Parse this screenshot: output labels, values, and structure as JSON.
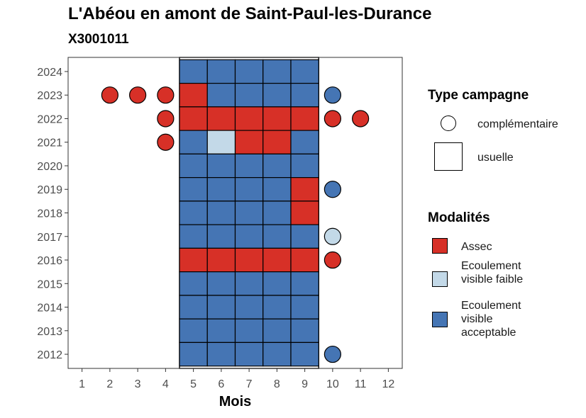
{
  "title": "L'Abéou en amont de Saint-Paul-les-Durance",
  "subtitle": "X3001011",
  "chart_data": {
    "type": "heatmap",
    "xlabel": "Mois",
    "ylabel": "",
    "x_ticks": [
      1,
      2,
      3,
      4,
      5,
      6,
      7,
      8,
      9,
      10,
      11,
      12
    ],
    "y_ticks": [
      2012,
      2013,
      2014,
      2015,
      2016,
      2017,
      2018,
      2019,
      2020,
      2021,
      2022,
      2023,
      2024
    ],
    "xlim": [
      0.5,
      12.5
    ],
    "ylim": [
      2011.4,
      2024.6
    ],
    "grid": false,
    "legend_position": "right",
    "colors": {
      "Assec": "#d73027",
      "Ecoulement visible faible": "#c3d9e8",
      "Ecoulement visible acceptable": "#4575b4"
    },
    "usual_campaign_band": [
      5,
      9
    ],
    "points": [
      {
        "year": 2024,
        "month": 5,
        "type": "usuelle",
        "modalite": "Ecoulement visible acceptable"
      },
      {
        "year": 2024,
        "month": 6,
        "type": "usuelle",
        "modalite": "Ecoulement visible acceptable"
      },
      {
        "year": 2024,
        "month": 7,
        "type": "usuelle",
        "modalite": "Ecoulement visible acceptable"
      },
      {
        "year": 2024,
        "month": 8,
        "type": "usuelle",
        "modalite": "Ecoulement visible acceptable"
      },
      {
        "year": 2024,
        "month": 9,
        "type": "usuelle",
        "modalite": "Ecoulement visible acceptable"
      },
      {
        "year": 2023,
        "month": 2,
        "type": "complémentaire",
        "modalite": "Assec"
      },
      {
        "year": 2023,
        "month": 3,
        "type": "complémentaire",
        "modalite": "Assec"
      },
      {
        "year": 2023,
        "month": 4,
        "type": "complémentaire",
        "modalite": "Assec"
      },
      {
        "year": 2023,
        "month": 5,
        "type": "usuelle",
        "modalite": "Assec"
      },
      {
        "year": 2023,
        "month": 6,
        "type": "usuelle",
        "modalite": "Ecoulement visible acceptable"
      },
      {
        "year": 2023,
        "month": 7,
        "type": "usuelle",
        "modalite": "Ecoulement visible acceptable"
      },
      {
        "year": 2023,
        "month": 8,
        "type": "usuelle",
        "modalite": "Ecoulement visible acceptable"
      },
      {
        "year": 2023,
        "month": 9,
        "type": "usuelle",
        "modalite": "Ecoulement visible acceptable"
      },
      {
        "year": 2023,
        "month": 10,
        "type": "complémentaire",
        "modalite": "Ecoulement visible acceptable"
      },
      {
        "year": 2022,
        "month": 4,
        "type": "complémentaire",
        "modalite": "Assec"
      },
      {
        "year": 2022,
        "month": 5,
        "type": "usuelle",
        "modalite": "Assec"
      },
      {
        "year": 2022,
        "month": 6,
        "type": "usuelle",
        "modalite": "Assec"
      },
      {
        "year": 2022,
        "month": 7,
        "type": "usuelle",
        "modalite": "Assec"
      },
      {
        "year": 2022,
        "month": 8,
        "type": "usuelle",
        "modalite": "Assec"
      },
      {
        "year": 2022,
        "month": 9,
        "type": "usuelle",
        "modalite": "Assec"
      },
      {
        "year": 2022,
        "month": 10,
        "type": "complémentaire",
        "modalite": "Assec"
      },
      {
        "year": 2022,
        "month": 11,
        "type": "complémentaire",
        "modalite": "Assec"
      },
      {
        "year": 2021,
        "month": 4,
        "type": "complémentaire",
        "modalite": "Assec"
      },
      {
        "year": 2021,
        "month": 5,
        "type": "usuelle",
        "modalite": "Ecoulement visible acceptable"
      },
      {
        "year": 2021,
        "month": 6,
        "type": "usuelle",
        "modalite": "Ecoulement visible faible"
      },
      {
        "year": 2021,
        "month": 7,
        "type": "usuelle",
        "modalite": "Assec"
      },
      {
        "year": 2021,
        "month": 8,
        "type": "usuelle",
        "modalite": "Assec"
      },
      {
        "year": 2021,
        "month": 9,
        "type": "usuelle",
        "modalite": "Ecoulement visible acceptable"
      },
      {
        "year": 2020,
        "month": 5,
        "type": "usuelle",
        "modalite": "Ecoulement visible acceptable"
      },
      {
        "year": 2020,
        "month": 6,
        "type": "usuelle",
        "modalite": "Ecoulement visible acceptable"
      },
      {
        "year": 2020,
        "month": 7,
        "type": "usuelle",
        "modalite": "Ecoulement visible acceptable"
      },
      {
        "year": 2020,
        "month": 8,
        "type": "usuelle",
        "modalite": "Ecoulement visible acceptable"
      },
      {
        "year": 2020,
        "month": 9,
        "type": "usuelle",
        "modalite": "Ecoulement visible acceptable"
      },
      {
        "year": 2019,
        "month": 5,
        "type": "usuelle",
        "modalite": "Ecoulement visible acceptable"
      },
      {
        "year": 2019,
        "month": 6,
        "type": "usuelle",
        "modalite": "Ecoulement visible acceptable"
      },
      {
        "year": 2019,
        "month": 7,
        "type": "usuelle",
        "modalite": "Ecoulement visible acceptable"
      },
      {
        "year": 2019,
        "month": 8,
        "type": "usuelle",
        "modalite": "Ecoulement visible acceptable"
      },
      {
        "year": 2019,
        "month": 9,
        "type": "usuelle",
        "modalite": "Assec"
      },
      {
        "year": 2019,
        "month": 10,
        "type": "complémentaire",
        "modalite": "Ecoulement visible acceptable"
      },
      {
        "year": 2018,
        "month": 5,
        "type": "usuelle",
        "modalite": "Ecoulement visible acceptable"
      },
      {
        "year": 2018,
        "month": 6,
        "type": "usuelle",
        "modalite": "Ecoulement visible acceptable"
      },
      {
        "year": 2018,
        "month": 7,
        "type": "usuelle",
        "modalite": "Ecoulement visible acceptable"
      },
      {
        "year": 2018,
        "month": 8,
        "type": "usuelle",
        "modalite": "Ecoulement visible acceptable"
      },
      {
        "year": 2018,
        "month": 9,
        "type": "usuelle",
        "modalite": "Assec"
      },
      {
        "year": 2017,
        "month": 5,
        "type": "usuelle",
        "modalite": "Ecoulement visible acceptable"
      },
      {
        "year": 2017,
        "month": 6,
        "type": "usuelle",
        "modalite": "Ecoulement visible acceptable"
      },
      {
        "year": 2017,
        "month": 7,
        "type": "usuelle",
        "modalite": "Ecoulement visible acceptable"
      },
      {
        "year": 2017,
        "month": 8,
        "type": "usuelle",
        "modalite": "Ecoulement visible acceptable"
      },
      {
        "year": 2017,
        "month": 9,
        "type": "usuelle",
        "modalite": "Ecoulement visible acceptable"
      },
      {
        "year": 2017,
        "month": 10,
        "type": "complémentaire",
        "modalite": "Ecoulement visible faible"
      },
      {
        "year": 2016,
        "month": 5,
        "type": "usuelle",
        "modalite": "Assec"
      },
      {
        "year": 2016,
        "month": 6,
        "type": "usuelle",
        "modalite": "Assec"
      },
      {
        "year": 2016,
        "month": 7,
        "type": "usuelle",
        "modalite": "Assec"
      },
      {
        "year": 2016,
        "month": 8,
        "type": "usuelle",
        "modalite": "Assec"
      },
      {
        "year": 2016,
        "month": 9,
        "type": "usuelle",
        "modalite": "Assec"
      },
      {
        "year": 2016,
        "month": 10,
        "type": "complémentaire",
        "modalite": "Assec"
      },
      {
        "year": 2015,
        "month": 5,
        "type": "usuelle",
        "modalite": "Ecoulement visible acceptable"
      },
      {
        "year": 2015,
        "month": 6,
        "type": "usuelle",
        "modalite": "Ecoulement visible acceptable"
      },
      {
        "year": 2015,
        "month": 7,
        "type": "usuelle",
        "modalite": "Ecoulement visible acceptable"
      },
      {
        "year": 2015,
        "month": 8,
        "type": "usuelle",
        "modalite": "Ecoulement visible acceptable"
      },
      {
        "year": 2015,
        "month": 9,
        "type": "usuelle",
        "modalite": "Ecoulement visible acceptable"
      },
      {
        "year": 2014,
        "month": 5,
        "type": "usuelle",
        "modalite": "Ecoulement visible acceptable"
      },
      {
        "year": 2014,
        "month": 6,
        "type": "usuelle",
        "modalite": "Ecoulement visible acceptable"
      },
      {
        "year": 2014,
        "month": 7,
        "type": "usuelle",
        "modalite": "Ecoulement visible acceptable"
      },
      {
        "year": 2014,
        "month": 8,
        "type": "usuelle",
        "modalite": "Ecoulement visible acceptable"
      },
      {
        "year": 2014,
        "month": 9,
        "type": "usuelle",
        "modalite": "Ecoulement visible acceptable"
      },
      {
        "year": 2013,
        "month": 5,
        "type": "usuelle",
        "modalite": "Ecoulement visible acceptable"
      },
      {
        "year": 2013,
        "month": 6,
        "type": "usuelle",
        "modalite": "Ecoulement visible acceptable"
      },
      {
        "year": 2013,
        "month": 7,
        "type": "usuelle",
        "modalite": "Ecoulement visible acceptable"
      },
      {
        "year": 2013,
        "month": 8,
        "type": "usuelle",
        "modalite": "Ecoulement visible acceptable"
      },
      {
        "year": 2013,
        "month": 9,
        "type": "usuelle",
        "modalite": "Ecoulement visible acceptable"
      },
      {
        "year": 2012,
        "month": 5,
        "type": "usuelle",
        "modalite": "Ecoulement visible acceptable"
      },
      {
        "year": 2012,
        "month": 6,
        "type": "usuelle",
        "modalite": "Ecoulement visible acceptable"
      },
      {
        "year": 2012,
        "month": 7,
        "type": "usuelle",
        "modalite": "Ecoulement visible acceptable"
      },
      {
        "year": 2012,
        "month": 8,
        "type": "usuelle",
        "modalite": "Ecoulement visible acceptable"
      },
      {
        "year": 2012,
        "month": 9,
        "type": "usuelle",
        "modalite": "Ecoulement visible acceptable"
      },
      {
        "year": 2012,
        "month": 10,
        "type": "complémentaire",
        "modalite": "Ecoulement visible acceptable"
      }
    ]
  },
  "legend": {
    "type_title": "Type campagne",
    "type_items": [
      {
        "label": "complémentaire",
        "shape": "circle"
      },
      {
        "label": "usuelle",
        "shape": "square"
      }
    ],
    "modalites_title": "Modalités",
    "modalites_items": [
      {
        "label": "Assec",
        "color": "#d73027"
      },
      {
        "label": "Ecoulement visible faible",
        "color": "#c3d9e8"
      },
      {
        "label": "Ecoulement visible acceptable",
        "color": "#4575b4"
      }
    ]
  }
}
